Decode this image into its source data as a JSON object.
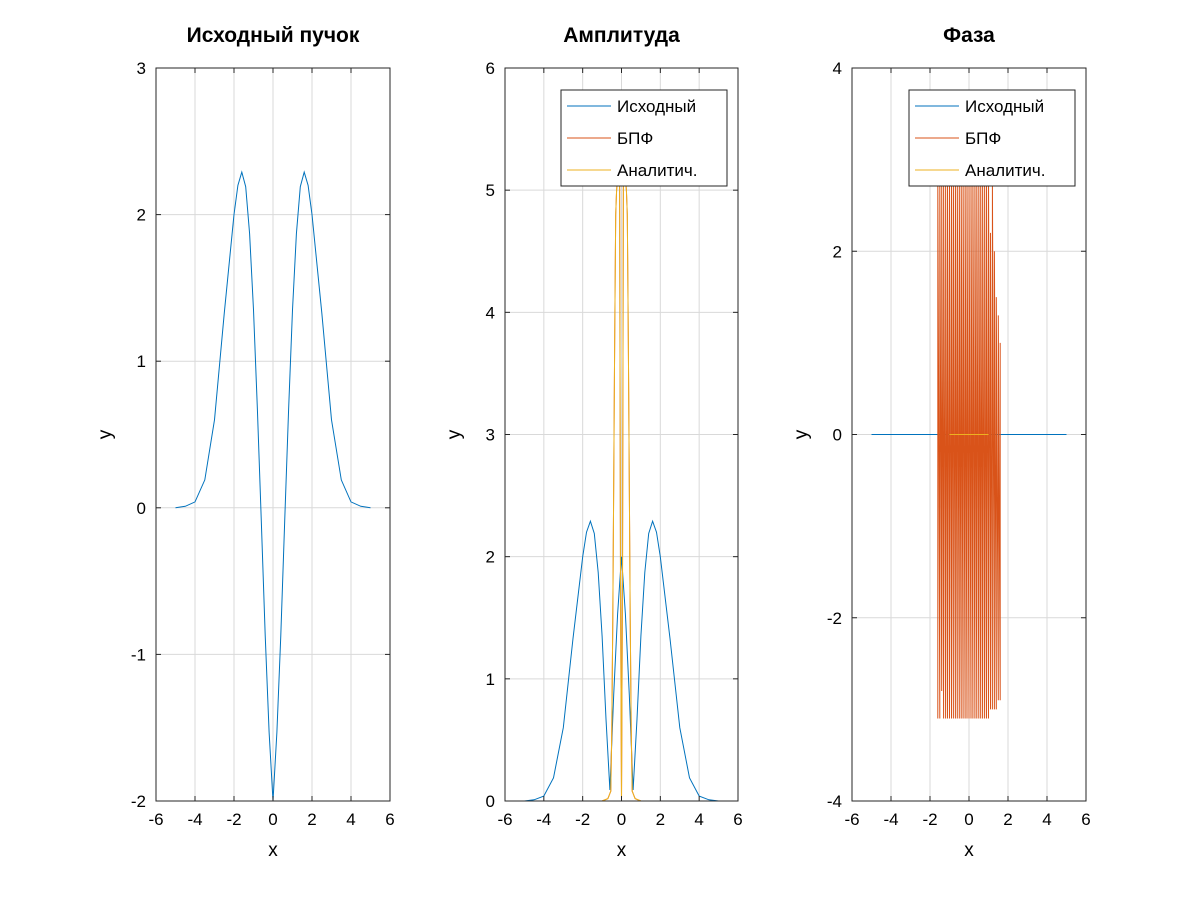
{
  "colors": {
    "series1": "#0072bd",
    "series2": "#d95319",
    "series3": "#edb120",
    "grid": "#d9d9d9",
    "axis": "#262626"
  },
  "chart_data": [
    {
      "type": "line",
      "title": "Исходный пучок",
      "xlabel": "x",
      "ylabel": "y",
      "xlim": [
        -6,
        6
      ],
      "ylim": [
        -2,
        3
      ],
      "xticks": [
        "-6",
        "-4",
        "-2",
        "0",
        "2",
        "4",
        "6"
      ],
      "yticks": [
        "-2",
        "-1",
        "0",
        "1",
        "2",
        "3"
      ],
      "grid": true,
      "legend": null,
      "series": [
        {
          "x": [
            -5.0,
            -4.5,
            -4.0,
            -3.5,
            -3.0,
            -2.5,
            -2.0,
            -1.8,
            -1.6,
            -1.4,
            -1.2,
            -1.0,
            -0.8,
            -0.6,
            -0.4,
            -0.2,
            0.0,
            0.2,
            0.4,
            0.6,
            0.8,
            1.0,
            1.2,
            1.4,
            1.6,
            1.8,
            2.0,
            2.5,
            3.0,
            3.5,
            4.0,
            4.5,
            5.0
          ],
          "y": [
            0.0,
            0.01,
            0.04,
            0.19,
            0.6,
            1.33,
            2.0,
            2.2,
            2.29,
            2.19,
            1.87,
            1.35,
            0.67,
            -0.09,
            -0.87,
            -1.53,
            -2.0,
            -1.53,
            -0.87,
            -0.09,
            0.67,
            1.35,
            1.87,
            2.19,
            2.29,
            2.2,
            2.0,
            1.33,
            0.6,
            0.19,
            0.04,
            0.01,
            0.0
          ]
        }
      ]
    },
    {
      "type": "line",
      "title": "Амплитуда",
      "xlabel": "x",
      "ylabel": "y",
      "xlim": [
        -6,
        6
      ],
      "ylim": [
        0,
        6
      ],
      "xticks": [
        "-6",
        "-4",
        "-2",
        "0",
        "2",
        "4",
        "6"
      ],
      "yticks": [
        "0",
        "1",
        "2",
        "3",
        "4",
        "5",
        "6"
      ],
      "grid": true,
      "legend": "top-right",
      "series": [
        {
          "name": "Исходный",
          "x": [
            -5.0,
            -4.5,
            -4.0,
            -3.5,
            -3.0,
            -2.5,
            -2.0,
            -1.8,
            -1.6,
            -1.4,
            -1.2,
            -1.0,
            -0.8,
            -0.6,
            -0.4,
            -0.2,
            0.0,
            0.2,
            0.4,
            0.6,
            0.8,
            1.0,
            1.2,
            1.4,
            1.6,
            1.8,
            2.0,
            2.5,
            3.0,
            3.5,
            4.0,
            4.5,
            5.0
          ],
          "y": [
            0.0,
            0.01,
            0.04,
            0.19,
            0.6,
            1.33,
            2.0,
            2.2,
            2.29,
            2.19,
            1.87,
            1.35,
            0.67,
            0.09,
            0.87,
            1.53,
            2.0,
            1.53,
            0.87,
            0.09,
            0.67,
            1.35,
            1.87,
            2.19,
            2.29,
            2.2,
            2.0,
            1.33,
            0.6,
            0.19,
            0.04,
            0.01,
            0.0
          ]
        },
        {
          "name": "БПФ",
          "x": [
            -1.0,
            -0.7,
            -0.55,
            -0.5,
            -0.45,
            -0.4,
            -0.35,
            -0.3,
            -0.25,
            -0.2,
            -0.15,
            -0.1,
            -0.05,
            0.0,
            0.05,
            0.1,
            0.15,
            0.2,
            0.25,
            0.3,
            0.35,
            0.4,
            0.45,
            0.5,
            0.55,
            0.7,
            1.0
          ],
          "y": [
            0.0,
            0.02,
            0.08,
            0.6,
            1.5,
            2.6,
            3.8,
            4.8,
            5.0,
            5.1,
            5.1,
            5.1,
            1.8,
            0.0,
            1.8,
            5.1,
            5.1,
            5.1,
            5.0,
            4.8,
            3.8,
            2.6,
            1.5,
            0.6,
            0.08,
            0.02,
            0.0
          ]
        },
        {
          "name": "Аналитич.",
          "x": [
            -1.0,
            -0.7,
            -0.55,
            -0.5,
            -0.45,
            -0.4,
            -0.35,
            -0.3,
            -0.25,
            -0.2,
            -0.15,
            -0.1,
            -0.05,
            0.0,
            0.05,
            0.1,
            0.15,
            0.2,
            0.25,
            0.3,
            0.35,
            0.4,
            0.45,
            0.5,
            0.55,
            0.7,
            1.0
          ],
          "y": [
            0.0,
            0.02,
            0.08,
            0.6,
            1.5,
            2.6,
            3.8,
            4.8,
            5.0,
            5.1,
            5.1,
            5.1,
            1.8,
            0.0,
            1.8,
            5.1,
            5.1,
            5.1,
            5.0,
            4.8,
            3.8,
            2.6,
            1.5,
            0.6,
            0.08,
            0.02,
            0.0
          ]
        }
      ]
    },
    {
      "type": "line",
      "title": "Фаза",
      "xlabel": "x",
      "ylabel": "y",
      "xlim": [
        -6,
        6
      ],
      "ylim": [
        -4,
        4
      ],
      "xticks": [
        "-6",
        "-4",
        "-2",
        "0",
        "2",
        "4",
        "6"
      ],
      "yticks": [
        "-4",
        "-2",
        "0",
        "2",
        "4"
      ],
      "grid": true,
      "legend": "top-right",
      "series": [
        {
          "name": "Исходный",
          "x": [
            -5.0,
            5.0
          ],
          "y": [
            0.0,
            0.0
          ]
        },
        {
          "name": "БПФ",
          "x": [
            -1.6,
            -1.6,
            -1.5,
            -1.5,
            -1.4,
            -1.4,
            -1.3,
            -1.3,
            -1.2,
            -1.2,
            -1.1,
            -1.1,
            -1.0,
            -1.0,
            -0.9,
            -0.9,
            -0.8,
            -0.8,
            -0.7,
            -0.7,
            -0.6,
            -0.6,
            -0.5,
            -0.5,
            -0.4,
            -0.4,
            -0.3,
            -0.3,
            -0.2,
            -0.2,
            -0.1,
            -0.1,
            0.0,
            0.0,
            0.1,
            0.1,
            0.2,
            0.2,
            0.3,
            0.3,
            0.4,
            0.4,
            0.5,
            0.5,
            0.6,
            0.6,
            0.7,
            0.7,
            0.8,
            0.8,
            0.9,
            0.9,
            1.0,
            1.0,
            1.1,
            1.1,
            1.2,
            1.2,
            1.3,
            1.3,
            1.4,
            1.4,
            1.5,
            1.5,
            1.6,
            1.6
          ],
          "y": [
            -3.1,
            2.8,
            -3.1,
            2.8,
            -2.8,
            2.8,
            -3.1,
            2.8,
            -3.1,
            2.8,
            -3.1,
            2.8,
            -3.1,
            2.8,
            -3.1,
            2.8,
            -3.1,
            2.8,
            -3.1,
            2.8,
            -3.1,
            2.8,
            -3.1,
            2.8,
            -3.1,
            2.8,
            -3.1,
            2.8,
            -3.1,
            2.8,
            -3.1,
            2.8,
            -3.1,
            2.8,
            -3.1,
            2.8,
            -3.1,
            2.8,
            -3.1,
            2.8,
            -3.1,
            2.8,
            -3.1,
            2.8,
            -3.1,
            2.8,
            -3.1,
            2.8,
            -3.1,
            2.8,
            -3.1,
            2.8,
            -3.1,
            2.8,
            -3.0,
            2.2,
            -3.0,
            2.8,
            -3.0,
            2.0,
            -3.0,
            1.5,
            -2.9,
            1.3,
            -2.9,
            1.0
          ]
        },
        {
          "name": "Аналитич.",
          "x": [
            -1.0,
            1.0
          ],
          "y": [
            0.0,
            0.0
          ]
        }
      ]
    }
  ]
}
